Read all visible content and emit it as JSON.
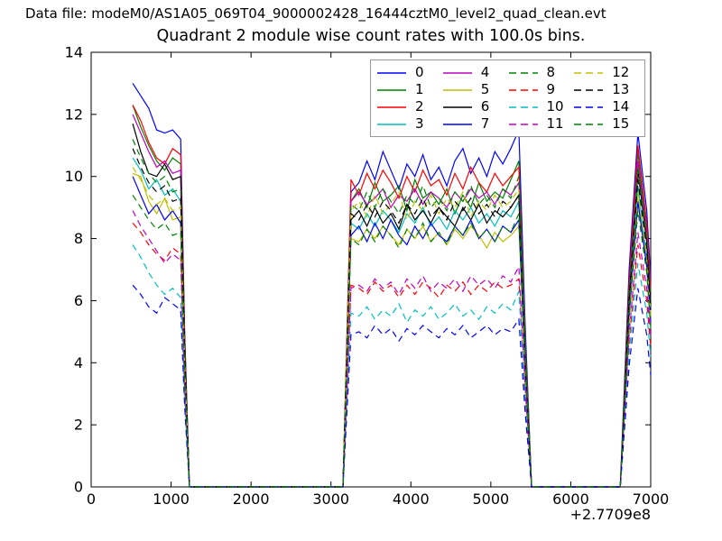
{
  "header": {
    "datafile_label": "Data file: modeM0/AS1A05_069T04_9000002428_16444cztM0_level2_quad_clean.evt"
  },
  "chart_data": {
    "type": "line",
    "title": "Quadrant 2 module wise count rates with 100.0s bins.",
    "xlabel": "",
    "ylabel": "",
    "xlim": [
      0,
      7000
    ],
    "ylim": [
      0,
      14
    ],
    "xticks": [
      0,
      1000,
      2000,
      3000,
      4000,
      5000,
      6000,
      7000
    ],
    "yticks": [
      0,
      2,
      4,
      6,
      8,
      10,
      12,
      14
    ],
    "x_offset_label": "+2.7709e8",
    "grid": false,
    "legend": {
      "position": "upper right",
      "columns": 4
    },
    "x": [
      520,
      620,
      720,
      820,
      920,
      1020,
      1120,
      1170,
      1230,
      2000,
      3150,
      3250,
      3350,
      3450,
      3550,
      3650,
      3750,
      3850,
      3950,
      4050,
      4150,
      4250,
      4350,
      4450,
      4550,
      4650,
      4750,
      4850,
      4950,
      5050,
      5150,
      5250,
      5350,
      5430,
      5510,
      6000,
      6620,
      6730,
      6840,
      6950,
      7000
    ],
    "series": [
      {
        "name": "0",
        "color": "#0000ff",
        "style": "solid",
        "y": [
          13.0,
          12.6,
          12.2,
          11.5,
          11.4,
          11.5,
          11.2,
          5.0,
          0,
          0,
          0,
          9.5,
          9.8,
          10.5,
          9.9,
          10.8,
          10.2,
          9.6,
          10.4,
          10.0,
          10.7,
          9.9,
          10.3,
          9.7,
          10.5,
          10.9,
          10.1,
          10.6,
          10.0,
          10.8,
          10.4,
          10.9,
          11.5,
          5.2,
          0,
          0,
          0,
          7.0,
          11.4,
          8.9,
          6.7
        ]
      },
      {
        "name": "1",
        "color": "#008000",
        "style": "solid",
        "y": [
          12.3,
          11.6,
          11.0,
          10.5,
          10.2,
          10.6,
          10.4,
          4.7,
          0,
          0,
          0,
          9.2,
          9.6,
          9.0,
          9.8,
          9.2,
          9.4,
          9.7,
          8.9,
          9.9,
          9.3,
          9.5,
          9.1,
          9.6,
          8.8,
          9.4,
          9.0,
          9.8,
          9.2,
          9.5,
          9.3,
          9.9,
          10.5,
          4.7,
          0,
          0,
          0,
          6.5,
          10.8,
          8.3,
          6.3
        ]
      },
      {
        "name": "2",
        "color": "#ff0000",
        "style": "solid",
        "y": [
          12.3,
          11.8,
          11.1,
          10.6,
          10.4,
          10.9,
          10.7,
          4.8,
          0,
          0,
          0,
          9.9,
          9.4,
          10.1,
          9.6,
          10.2,
          9.8,
          9.3,
          10.0,
          9.5,
          10.2,
          9.7,
          9.9,
          9.4,
          10.1,
          9.6,
          10.3,
          9.8,
          9.5,
          10.1,
          9.7,
          10.0,
          10.3,
          4.6,
          0,
          0,
          0,
          6.6,
          11.0,
          8.5,
          6.4
        ]
      },
      {
        "name": "3",
        "color": "#00bfbf",
        "style": "solid",
        "y": [
          10.6,
          10.2,
          9.6,
          9.9,
          9.4,
          9.6,
          9.2,
          4.1,
          0,
          0,
          0,
          8.5,
          8.3,
          8.8,
          8.4,
          8.9,
          8.6,
          8.2,
          8.8,
          8.5,
          9.0,
          8.4,
          8.7,
          8.3,
          8.9,
          8.6,
          9.0,
          8.5,
          8.8,
          8.4,
          8.9,
          8.7,
          9.2,
          4.1,
          0,
          0,
          0,
          5.8,
          9.7,
          7.4,
          5.6
        ]
      },
      {
        "name": "4",
        "color": "#bf00bf",
        "style": "solid",
        "y": [
          12.0,
          11.4,
          10.8,
          10.3,
          10.5,
          10.1,
          10.2,
          4.6,
          0,
          0,
          0,
          9.2,
          9.5,
          9.1,
          9.3,
          9.6,
          9.0,
          9.4,
          9.2,
          9.6,
          9.1,
          9.5,
          9.3,
          9.0,
          9.5,
          9.2,
          9.6,
          9.3,
          9.5,
          9.1,
          9.6,
          9.4,
          9.8,
          4.4,
          0,
          0,
          0,
          6.3,
          10.5,
          8.1,
          6.1
        ]
      },
      {
        "name": "5",
        "color": "#bfbf00",
        "style": "solid",
        "y": [
          10.1,
          10.0,
          9.2,
          8.8,
          9.3,
          8.6,
          8.7,
          3.9,
          0,
          0,
          0,
          8.0,
          7.9,
          8.3,
          8.0,
          8.4,
          8.1,
          7.8,
          8.3,
          8.0,
          8.4,
          7.9,
          8.2,
          7.8,
          8.3,
          8.0,
          8.4,
          8.1,
          7.7,
          8.2,
          7.9,
          8.1,
          8.4,
          3.8,
          0,
          0,
          0,
          5.6,
          9.3,
          7.2,
          5.4
        ]
      },
      {
        "name": "6",
        "color": "#000000",
        "style": "solid",
        "y": [
          11.7,
          10.8,
          10.1,
          10.0,
          10.4,
          9.9,
          10.0,
          4.5,
          0,
          0,
          0,
          8.6,
          8.9,
          8.4,
          9.0,
          8.5,
          8.8,
          8.3,
          9.1,
          8.6,
          8.9,
          8.5,
          9.0,
          8.7,
          8.4,
          9.0,
          8.6,
          9.1,
          8.5,
          8.9,
          8.7,
          9.0,
          9.4,
          4.2,
          0,
          0,
          0,
          6.1,
          10.2,
          7.9,
          5.9
        ]
      },
      {
        "name": "7",
        "color": "#0000ff",
        "style": "solid",
        "y": [
          10.0,
          9.4,
          8.8,
          9.1,
          8.6,
          8.9,
          8.5,
          3.8,
          0,
          0,
          0,
          8.1,
          8.4,
          7.9,
          8.5,
          8.0,
          8.6,
          8.1,
          7.8,
          8.4,
          8.0,
          8.5,
          8.1,
          7.9,
          8.4,
          8.1,
          8.6,
          8.0,
          8.3,
          7.9,
          8.4,
          8.2,
          8.6,
          3.9,
          0,
          0,
          0,
          5.5,
          9.2,
          7.1,
          5.3
        ]
      },
      {
        "name": "8",
        "color": "#008000",
        "style": "dashed",
        "y": [
          11.2,
          10.6,
          10.1,
          9.8,
          10.0,
          9.5,
          9.6,
          4.3,
          0,
          0,
          0,
          9.1,
          8.9,
          9.5,
          9.0,
          9.6,
          9.2,
          8.8,
          9.4,
          9.1,
          9.7,
          9.0,
          9.3,
          8.9,
          9.5,
          9.2,
          9.7,
          9.1,
          9.4,
          9.0,
          9.6,
          9.3,
          10.0,
          4.5,
          0,
          0,
          0,
          6.2,
          10.3,
          8.0,
          6.0
        ]
      },
      {
        "name": "9",
        "color": "#ff0000",
        "style": "dashed",
        "y": [
          8.5,
          8.2,
          7.8,
          7.5,
          7.3,
          7.7,
          7.5,
          3.4,
          0,
          0,
          0,
          6.5,
          6.4,
          6.2,
          6.6,
          6.3,
          6.5,
          6.1,
          6.5,
          6.2,
          6.6,
          6.4,
          6.1,
          6.5,
          6.3,
          6.6,
          6.2,
          6.5,
          6.3,
          6.6,
          6.4,
          6.5,
          6.7,
          3.0,
          0,
          0,
          0,
          4.7,
          7.8,
          6.0,
          4.5
        ]
      },
      {
        "name": "10",
        "color": "#00bfbf",
        "style": "dashed",
        "y": [
          7.8,
          7.4,
          6.9,
          6.5,
          6.2,
          6.4,
          6.1,
          2.7,
          0,
          0,
          0,
          5.6,
          5.5,
          5.8,
          5.4,
          5.7,
          5.5,
          5.9,
          5.3,
          5.7,
          5.5,
          5.8,
          5.4,
          5.6,
          5.9,
          5.5,
          5.7,
          5.4,
          5.8,
          5.6,
          5.9,
          5.7,
          6.3,
          2.8,
          0,
          0,
          0,
          4.3,
          7.2,
          5.6,
          4.2
        ]
      },
      {
        "name": "11",
        "color": "#bf00bf",
        "style": "dashed",
        "y": [
          8.9,
          8.4,
          8.0,
          7.6,
          7.2,
          7.5,
          7.3,
          3.3,
          0,
          0,
          0,
          6.4,
          6.5,
          6.3,
          6.7,
          6.4,
          6.6,
          6.2,
          6.7,
          6.4,
          6.8,
          6.3,
          6.6,
          6.4,
          6.7,
          6.3,
          6.8,
          6.5,
          6.7,
          6.4,
          6.8,
          6.6,
          7.1,
          3.2,
          0,
          0,
          0,
          4.9,
          8.2,
          6.4,
          4.8
        ]
      },
      {
        "name": "12",
        "color": "#bfbf00",
        "style": "dashed",
        "y": [
          10.3,
          9.9,
          9.4,
          9.1,
          9.3,
          8.9,
          9.0,
          4.1,
          0,
          0,
          0,
          8.9,
          9.2,
          8.7,
          9.4,
          8.8,
          9.1,
          9.5,
          8.6,
          9.2,
          8.9,
          9.4,
          8.8,
          9.3,
          9.0,
          9.5,
          8.7,
          9.2,
          8.9,
          9.4,
          9.0,
          9.2,
          9.6,
          4.3,
          0,
          0,
          0,
          5.7,
          9.5,
          7.4,
          5.5
        ]
      },
      {
        "name": "13",
        "color": "#000000",
        "style": "dashed",
        "y": [
          10.9,
          10.3,
          9.8,
          9.5,
          9.7,
          9.2,
          9.3,
          4.2,
          0,
          0,
          0,
          8.8,
          8.6,
          9.1,
          8.7,
          9.2,
          8.9,
          8.5,
          9.1,
          8.8,
          9.3,
          8.7,
          9.0,
          8.6,
          9.2,
          8.9,
          9.3,
          8.8,
          9.1,
          8.7,
          9.2,
          9.0,
          9.4,
          4.2,
          0,
          0,
          0,
          5.9,
          9.9,
          7.7,
          5.7
        ]
      },
      {
        "name": "14",
        "color": "#0000ff",
        "style": "dashed",
        "y": [
          6.5,
          6.2,
          5.8,
          5.6,
          6.1,
          5.9,
          5.7,
          2.6,
          0,
          0,
          0,
          4.9,
          5.0,
          4.8,
          5.2,
          4.9,
          5.1,
          4.7,
          5.1,
          4.9,
          5.2,
          5.0,
          4.8,
          5.1,
          4.9,
          5.2,
          4.8,
          5.0,
          5.2,
          4.9,
          5.1,
          5.0,
          5.4,
          2.4,
          0,
          0,
          0,
          3.9,
          6.4,
          4.9,
          3.6
        ]
      },
      {
        "name": "15",
        "color": "#008000",
        "style": "dashed",
        "y": [
          9.4,
          9.0,
          8.6,
          8.3,
          8.5,
          8.1,
          8.2,
          3.7,
          0,
          0,
          0,
          8.0,
          7.8,
          8.3,
          7.9,
          8.4,
          8.1,
          7.7,
          8.3,
          8.0,
          8.5,
          7.9,
          8.2,
          7.8,
          8.4,
          8.1,
          8.5,
          8.0,
          8.3,
          7.9,
          8.4,
          8.2,
          8.8,
          4.0,
          0,
          0,
          0,
          5.4,
          8.9,
          6.9,
          5.1
        ]
      }
    ]
  }
}
